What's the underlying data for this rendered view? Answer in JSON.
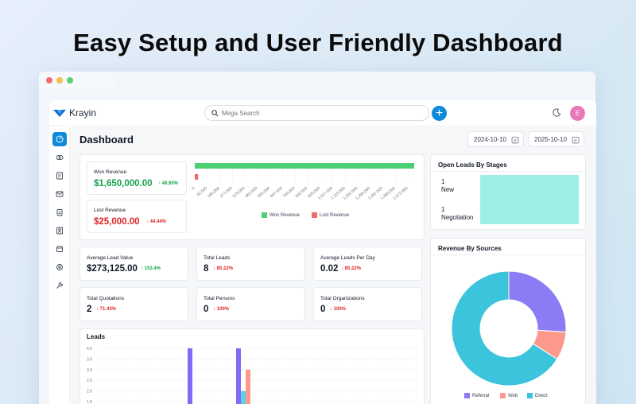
{
  "headline": "Easy Setup and User Friendly Dashboard",
  "app_name": "Krayin",
  "search": {
    "placeholder": "Mega Search"
  },
  "avatar_initial": "E",
  "page_title": "Dashboard",
  "dates": {
    "start": "2024-10-10",
    "end": "2025-10-10"
  },
  "revenue": {
    "won": {
      "label": "Won Revenue",
      "value": "$1,650,000.00",
      "change": "↑ 48.65%"
    },
    "lost": {
      "label": "Lost Revenue",
      "value": "$25,000.00",
      "change": "↓ 44.44%"
    }
  },
  "revenue_chart": {
    "type": "bar",
    "orientation": "horizontal",
    "ticks": [
      "0",
      "92,500",
      "185,000",
      "277,500",
      "370,000",
      "462,500",
      "555,000",
      "647,500",
      "740,000",
      "832,500",
      "925,000",
      "1,017,500",
      "1,110,000",
      "1,202,500",
      "1,295,000",
      "1,387,500",
      "1,480,000",
      "1,572,500"
    ],
    "xlim": [
      0,
      1650000
    ],
    "series": [
      {
        "name": "Won Revenue",
        "values": [
          1650000
        ]
      },
      {
        "name": "Lost Revenue",
        "values": [
          25000
        ]
      }
    ],
    "legend": [
      "Won Revenue",
      "Lost Revenue"
    ],
    "colors": {
      "won": "#4ccf73",
      "lost": "#ef6a6a"
    }
  },
  "stats": [
    {
      "label": "Average Lead Value",
      "value": "$273,125.00",
      "change": "↑ 153.4%",
      "dir": "up"
    },
    {
      "label": "Total Leads",
      "value": "8",
      "change": "↓ 85.22%",
      "dir": "down"
    },
    {
      "label": "Average Leads Per Day",
      "value": "0.02",
      "change": "↓ 85.22%",
      "dir": "down"
    },
    {
      "label": "Total Quotations",
      "value": "2",
      "change": "↓ 71.43%",
      "dir": "down"
    },
    {
      "label": "Total Persons",
      "value": "0",
      "change": "↓ 100%",
      "dir": "down"
    },
    {
      "label": "Total Organizations",
      "value": "0",
      "change": "↓ 100%",
      "dir": "down"
    }
  ],
  "open_leads": {
    "title": "Open Leads By Stages",
    "stages": [
      {
        "count": "1",
        "name": "New",
        "value": 1
      },
      {
        "count": "1",
        "name": "Negotiation",
        "value": 1
      }
    ],
    "color": "#9cefe5"
  },
  "revenue_sources": {
    "title": "Revenue By Sources",
    "chart_data": {
      "type": "pie",
      "style": "donut",
      "categories": [
        "Referral",
        "Web",
        "Direct"
      ],
      "values": [
        26,
        8,
        66
      ],
      "colors": [
        "#8b7cf6",
        "#fb9a8c",
        "#3cc4dc"
      ]
    }
  },
  "leads_chart": {
    "title": "Leads",
    "chart_data": {
      "type": "bar",
      "yticks": [
        "4.0",
        "3.5",
        "3.0",
        "2.5",
        "2.0",
        "1.5"
      ],
      "ylim": [
        1.5,
        4.0
      ],
      "bars": [
        {
          "group": 1,
          "value": 4.0,
          "color": "#7c6cf6"
        },
        {
          "group": 2,
          "value": 4.0,
          "color": "#7c6cf6"
        },
        {
          "group": 2,
          "value": 2.0,
          "color": "#5ccfe0"
        },
        {
          "group": 2,
          "value": 3.0,
          "color": "#fb9a8c"
        }
      ]
    }
  }
}
